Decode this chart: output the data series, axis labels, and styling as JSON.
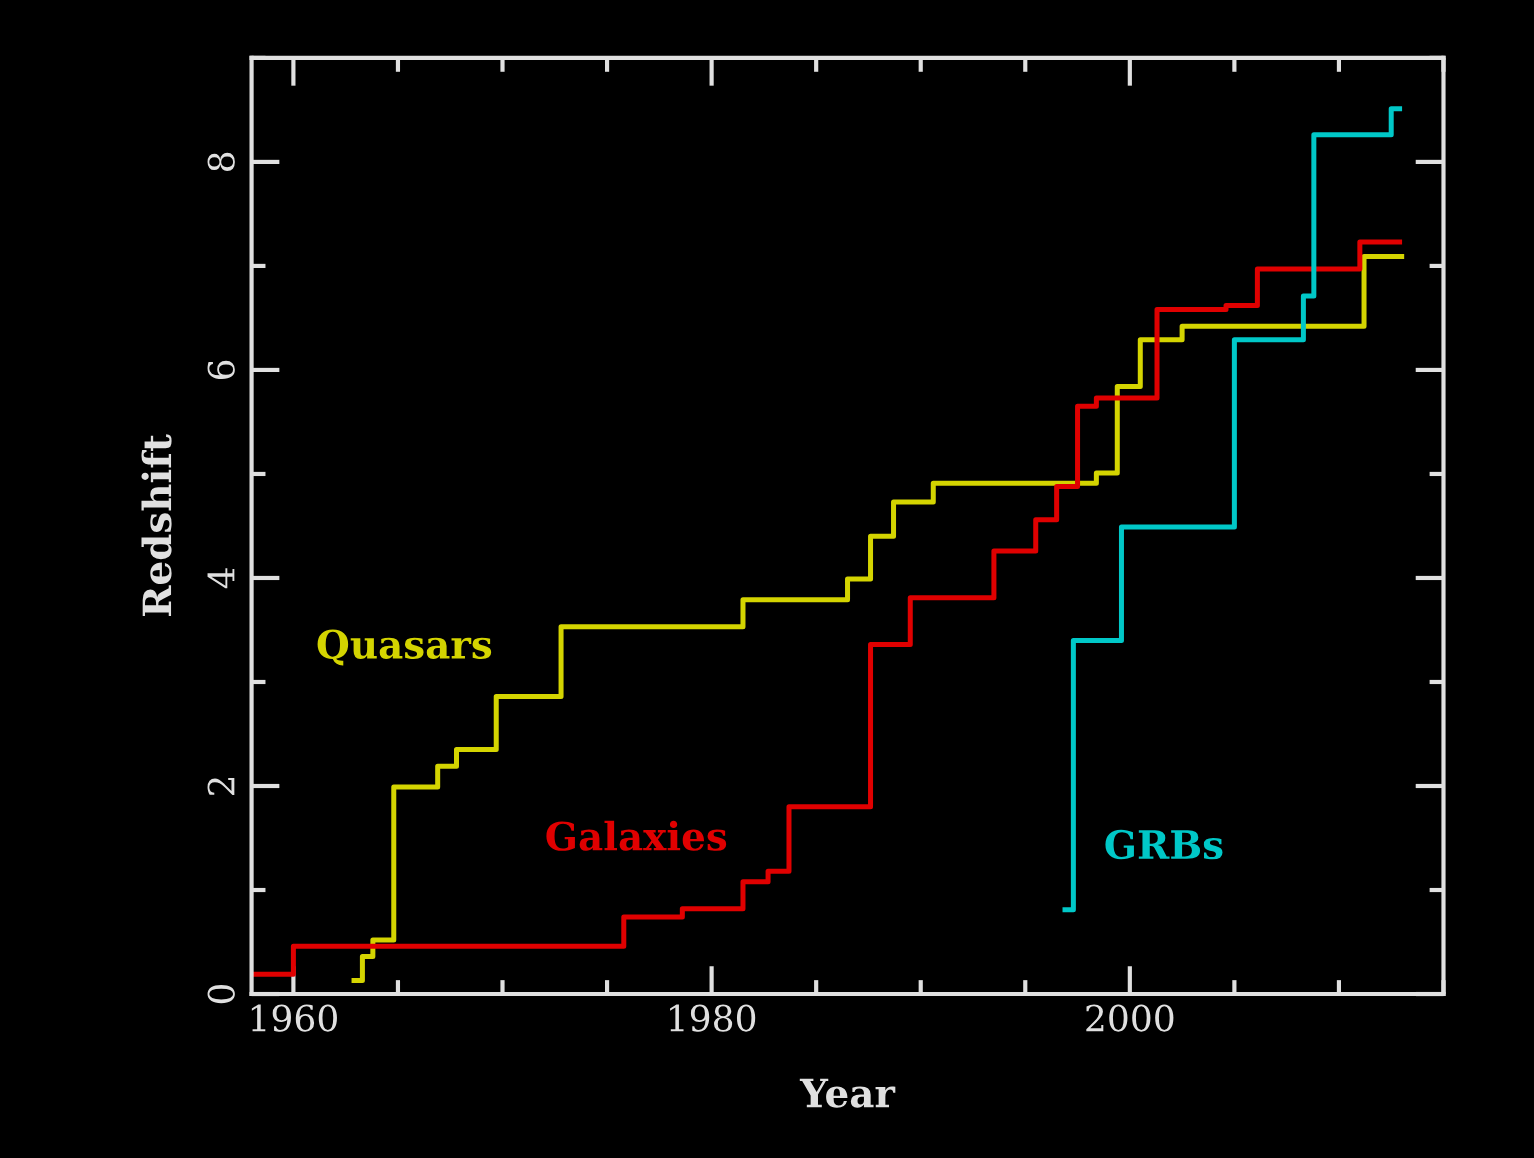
{
  "chart_data": {
    "type": "step",
    "xlabel": "Year",
    "ylabel": "Redshift",
    "xlim": [
      1958,
      2015
    ],
    "xticks": [
      1960,
      1980,
      2000
    ],
    "ylim": [
      0,
      9
    ],
    "yticks": [
      0,
      2,
      4,
      6,
      8
    ],
    "grid": false,
    "legend": false,
    "series": [
      {
        "name": "Quasars",
        "color": "#d4d400",
        "x": [
          1962.9,
          1963.3,
          1963.8,
          1964.8,
          1966.9,
          1967.8,
          1969.7,
          1972.8,
          1981.5,
          1986.5,
          1987.6,
          1988.7,
          1990.6,
          1998.4,
          1999.4,
          2000.5,
          2002.5,
          2011.2,
          2013.0
        ],
        "values": [
          0.13,
          0.36,
          0.52,
          1.99,
          2.19,
          2.35,
          2.86,
          3.53,
          3.79,
          3.99,
          4.4,
          4.73,
          4.91,
          5.01,
          5.84,
          6.29,
          6.42,
          7.09,
          7.09
        ]
      },
      {
        "name": "Galaxies",
        "color": "#e00000",
        "x": [
          1958,
          1960,
          1975.8,
          1978.6,
          1981.5,
          1982.7,
          1983.7,
          1987.6,
          1989.5,
          1993.5,
          1995.5,
          1996.5,
          1997.5,
          1998.4,
          2001.3,
          2004.6,
          2006.1,
          2011.0,
          2012.9
        ],
        "values": [
          0.19,
          0.46,
          0.74,
          0.82,
          1.08,
          1.18,
          1.8,
          3.36,
          3.81,
          4.26,
          4.56,
          4.88,
          5.65,
          5.73,
          6.58,
          6.62,
          6.97,
          7.23,
          7.23
        ]
      },
      {
        "name": "GRBs",
        "color": "#00c8c8",
        "x": [
          1996.9,
          1997.3,
          1999.6,
          2005.0,
          2008.3,
          2008.8,
          2012.5,
          2012.9
        ],
        "values": [
          0.81,
          3.4,
          4.49,
          6.29,
          6.71,
          8.26,
          8.51,
          8.51
        ]
      }
    ]
  }
}
